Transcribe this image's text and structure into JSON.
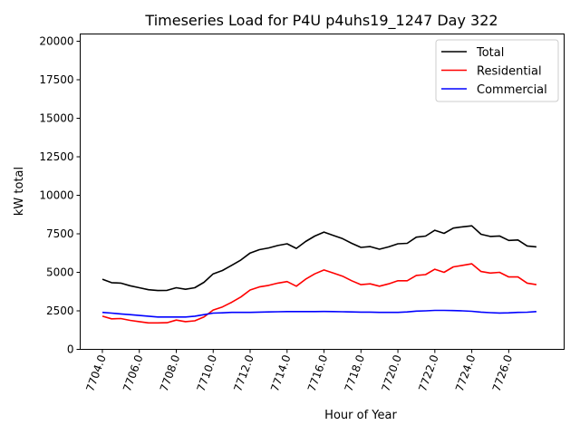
{
  "chart_data": {
    "type": "line",
    "title": "Timeseries Load for P4U p4uhs19_1247  Day 322",
    "xlabel": "Hour of Year",
    "ylabel": "kW total",
    "xlim": [
      7702.8,
      7729.0
    ],
    "ylim": [
      0,
      20470
    ],
    "xticks": [
      7704,
      7706,
      7708,
      7710,
      7712,
      7714,
      7716,
      7718,
      7720,
      7722,
      7724,
      7726
    ],
    "xtick_labels": [
      "7704.0",
      "7706.0",
      "7708.0",
      "7710.0",
      "7712.0",
      "7714.0",
      "7716.0",
      "7718.0",
      "7720.0",
      "7722.0",
      "7724.0",
      "7726.0"
    ],
    "yticks": [
      0,
      2500,
      5000,
      7500,
      10000,
      12500,
      15000,
      17500,
      20000
    ],
    "ytick_labels": [
      "0",
      "2500",
      "5000",
      "7500",
      "10000",
      "12500",
      "15000",
      "17500",
      "20000"
    ],
    "grid": false,
    "legend_position": "top-right",
    "x_start": 7704,
    "x_step": 0.5,
    "series": [
      {
        "name": "Total",
        "color": "#000000",
        "values": [
          4550,
          4330,
          4300,
          4130,
          4000,
          3870,
          3820,
          3830,
          4000,
          3900,
          4000,
          4350,
          4900,
          5120,
          5450,
          5800,
          6250,
          6470,
          6580,
          6740,
          6850,
          6550,
          7000,
          7350,
          7610,
          7400,
          7190,
          6880,
          6620,
          6670,
          6500,
          6650,
          6850,
          6880,
          7280,
          7350,
          7730,
          7530,
          7870,
          7950,
          8020,
          7470,
          7330,
          7360,
          7070,
          7100,
          6710,
          6650
        ]
      },
      {
        "name": "Residential",
        "color": "#ff0000",
        "values": [
          2150,
          1980,
          2000,
          1880,
          1800,
          1720,
          1720,
          1730,
          1900,
          1800,
          1850,
          2100,
          2550,
          2750,
          3050,
          3400,
          3850,
          4050,
          4150,
          4300,
          4400,
          4100,
          4550,
          4900,
          5150,
          4950,
          4750,
          4450,
          4200,
          4250,
          4100,
          4250,
          4450,
          4450,
          4800,
          4850,
          5200,
          5000,
          5350,
          5450,
          5550,
          5050,
          4950,
          5000,
          4700,
          4700,
          4300,
          4200
        ]
      },
      {
        "name": "Commercial",
        "color": "#0000ff",
        "values": [
          2400,
          2350,
          2300,
          2250,
          2200,
          2150,
          2100,
          2100,
          2100,
          2100,
          2150,
          2250,
          2350,
          2370,
          2400,
          2400,
          2400,
          2420,
          2430,
          2440,
          2450,
          2450,
          2450,
          2450,
          2460,
          2450,
          2440,
          2430,
          2420,
          2420,
          2400,
          2400,
          2400,
          2430,
          2480,
          2500,
          2530,
          2530,
          2520,
          2500,
          2470,
          2420,
          2380,
          2360,
          2370,
          2400,
          2410,
          2450
        ]
      }
    ]
  }
}
